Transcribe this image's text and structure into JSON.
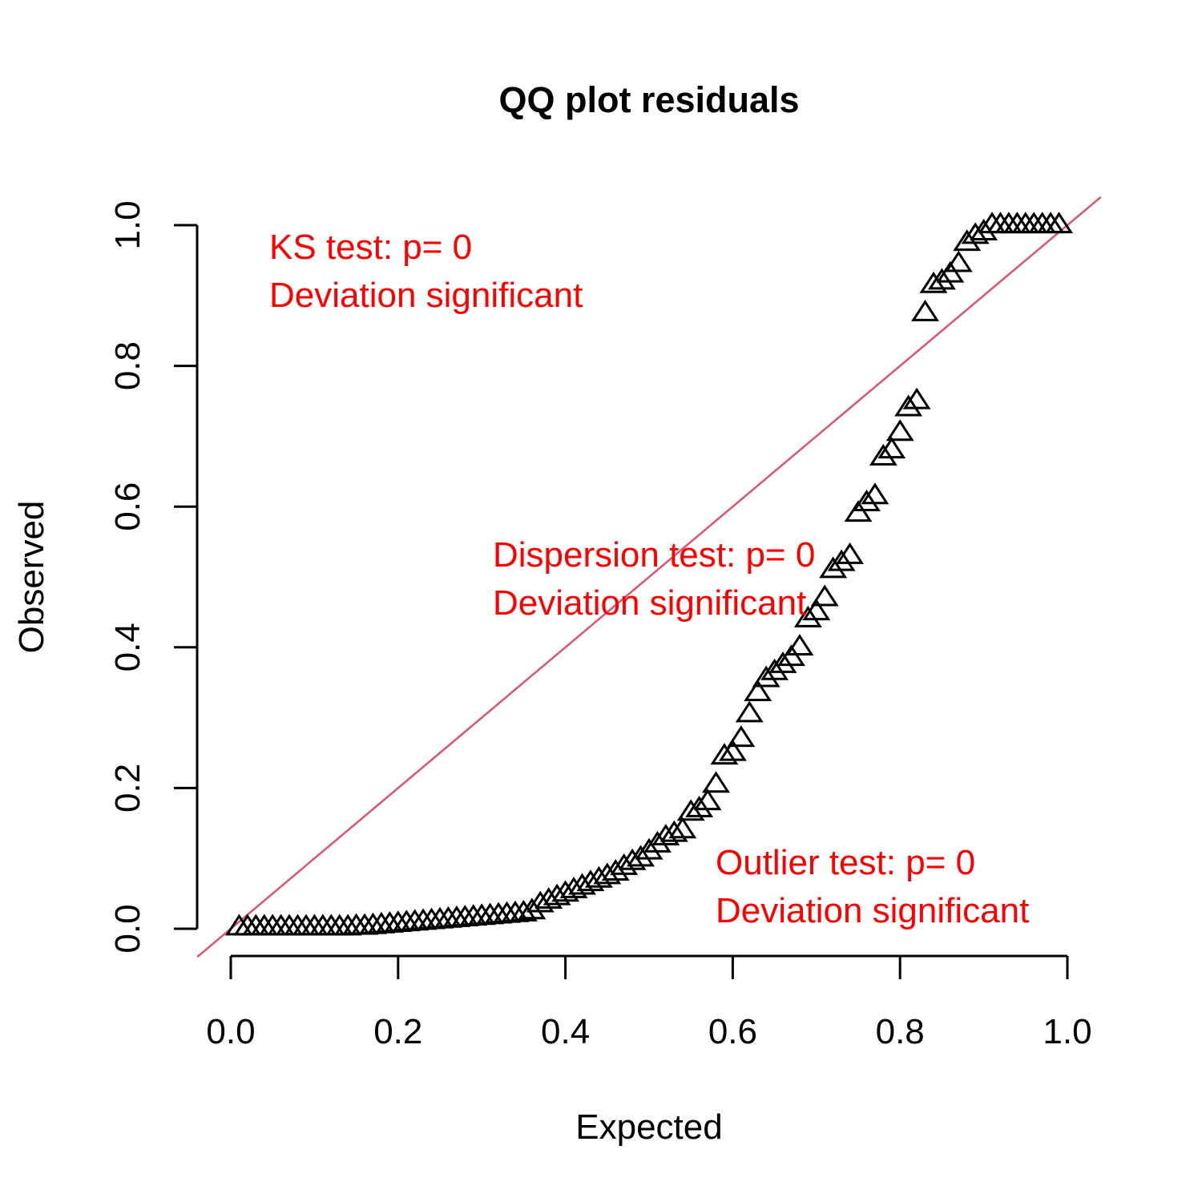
{
  "chart_data": {
    "type": "scatter",
    "title": "QQ plot residuals",
    "xlabel": "Expected",
    "ylabel": "Observed",
    "xlim": [
      0,
      1
    ],
    "ylim": [
      0,
      1
    ],
    "x_ticks": [
      "0.0",
      "0.2",
      "0.4",
      "0.6",
      "0.8",
      "1.0"
    ],
    "y_ticks": [
      "0.0",
      "0.2",
      "0.4",
      "0.6",
      "0.8",
      "1.0"
    ],
    "grid": false,
    "marker": "triangle",
    "reference_line": {
      "from": [
        0,
        0
      ],
      "to": [
        1,
        1
      ],
      "color": "#df536b"
    },
    "annotations": [
      {
        "name": "ks",
        "lines": [
          "KS test: p= 0",
          "Deviation  significant"
        ],
        "color": "#ff0000"
      },
      {
        "name": "dispersion",
        "lines": [
          "Dispersion test: p= 0",
          "Deviation  significant"
        ],
        "color": "#ff0000"
      },
      {
        "name": "outlier",
        "lines": [
          "Outlier test: p= 0",
          "Deviation  significant"
        ],
        "color": "#ff0000"
      }
    ],
    "x": [
      0.01,
      0.02,
      0.03,
      0.04,
      0.05,
      0.06,
      0.07,
      0.08,
      0.09,
      0.1,
      0.11,
      0.12,
      0.13,
      0.14,
      0.15,
      0.16,
      0.17,
      0.18,
      0.19,
      0.2,
      0.21,
      0.22,
      0.23,
      0.24,
      0.25,
      0.26,
      0.27,
      0.28,
      0.29,
      0.3,
      0.31,
      0.32,
      0.33,
      0.34,
      0.35,
      0.36,
      0.37,
      0.38,
      0.39,
      0.4,
      0.41,
      0.42,
      0.43,
      0.44,
      0.45,
      0.46,
      0.47,
      0.48,
      0.49,
      0.5,
      0.51,
      0.52,
      0.53,
      0.54,
      0.55,
      0.56,
      0.57,
      0.58,
      0.59,
      0.6,
      0.61,
      0.62,
      0.63,
      0.64,
      0.65,
      0.66,
      0.67,
      0.68,
      0.69,
      0.7,
      0.71,
      0.72,
      0.73,
      0.74,
      0.75,
      0.76,
      0.77,
      0.78,
      0.79,
      0.8,
      0.81,
      0.82,
      0.83,
      0.84,
      0.85,
      0.86,
      0.87,
      0.88,
      0.89,
      0.9,
      0.91,
      0.92,
      0.93,
      0.94,
      0.95,
      0.96,
      0.97,
      0.98,
      0.99
    ],
    "y": [
      0.002,
      0.002,
      0.002,
      0.002,
      0.002,
      0.002,
      0.002,
      0.002,
      0.002,
      0.002,
      0.002,
      0.002,
      0.002,
      0.002,
      0.003,
      0.003,
      0.004,
      0.005,
      0.006,
      0.007,
      0.008,
      0.009,
      0.01,
      0.011,
      0.012,
      0.013,
      0.014,
      0.015,
      0.016,
      0.017,
      0.018,
      0.019,
      0.02,
      0.021,
      0.022,
      0.025,
      0.035,
      0.04,
      0.045,
      0.05,
      0.055,
      0.06,
      0.065,
      0.07,
      0.075,
      0.08,
      0.088,
      0.095,
      0.1,
      0.11,
      0.12,
      0.13,
      0.135,
      0.14,
      0.165,
      0.17,
      0.18,
      0.205,
      0.245,
      0.25,
      0.27,
      0.305,
      0.335,
      0.355,
      0.365,
      0.375,
      0.385,
      0.4,
      0.44,
      0.45,
      0.47,
      0.51,
      0.52,
      0.53,
      0.59,
      0.605,
      0.615,
      0.67,
      0.68,
      0.705,
      0.74,
      0.75,
      0.875,
      0.915,
      0.92,
      0.93,
      0.945,
      0.975,
      0.985,
      0.99,
      1.0,
      1.0,
      1.0,
      1.0,
      1.0,
      1.0,
      1.0,
      1.0,
      1.0
    ]
  }
}
